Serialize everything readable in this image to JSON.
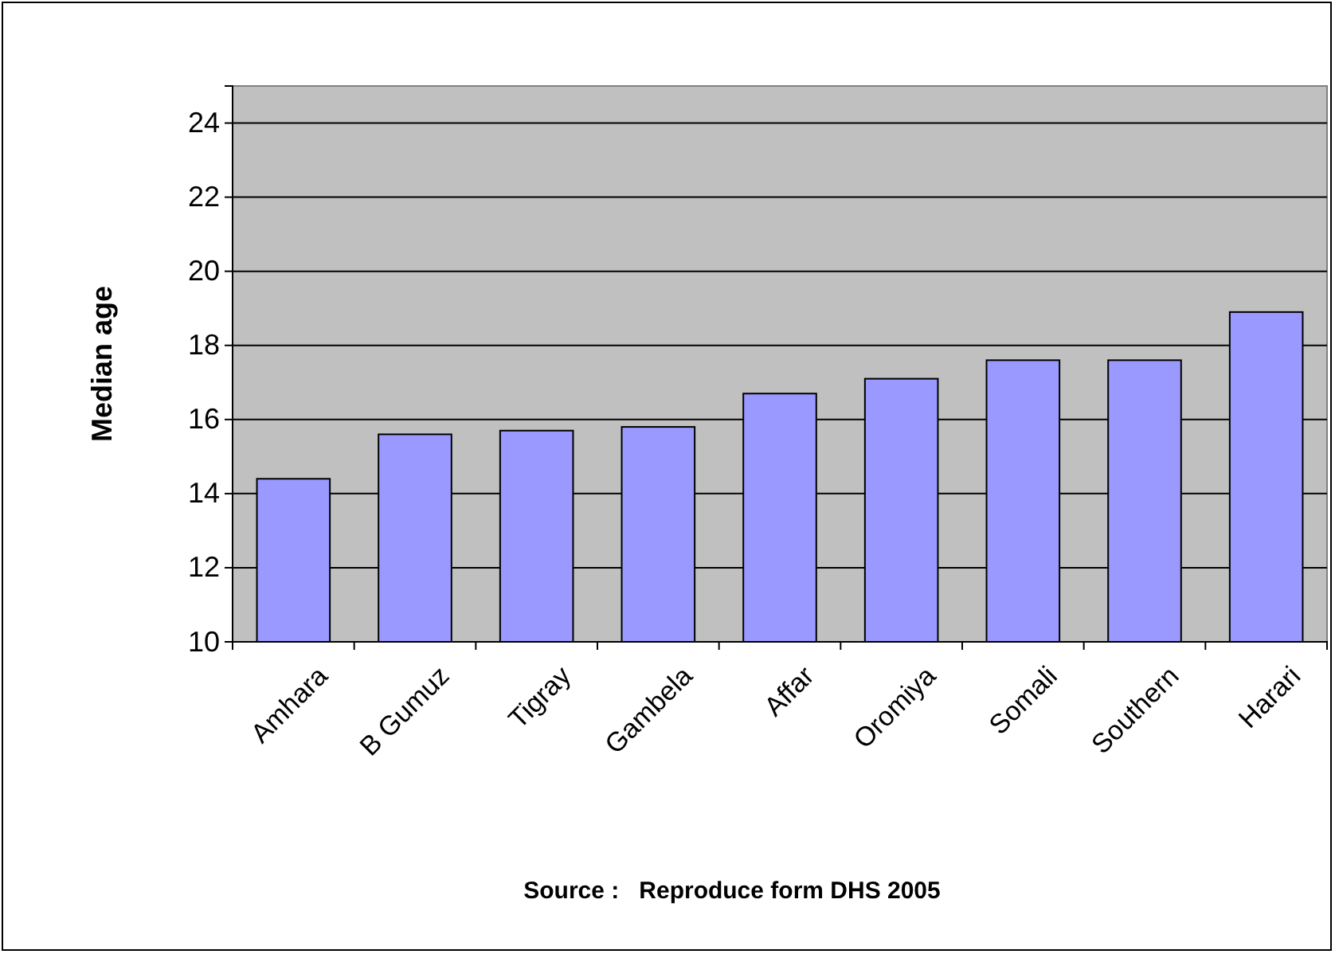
{
  "chart_data": {
    "type": "bar",
    "ylabel": "Median age",
    "categories": [
      "Amhara",
      "B Gumuz",
      "Tigray",
      "Gambela",
      "Affar",
      "Oromiya",
      "Somali",
      "Southern",
      "Harari"
    ],
    "values": [
      14.4,
      15.6,
      15.7,
      15.8,
      16.7,
      17.1,
      17.6,
      17.6,
      18.9
    ],
    "color": "#9999ff",
    "ylim": [
      10,
      25
    ],
    "yticks": [
      10,
      12,
      14,
      16,
      18,
      20,
      22,
      24
    ],
    "grid": "y",
    "annotations": [
      "Source :   Reproduce form DHS 2005"
    ]
  }
}
